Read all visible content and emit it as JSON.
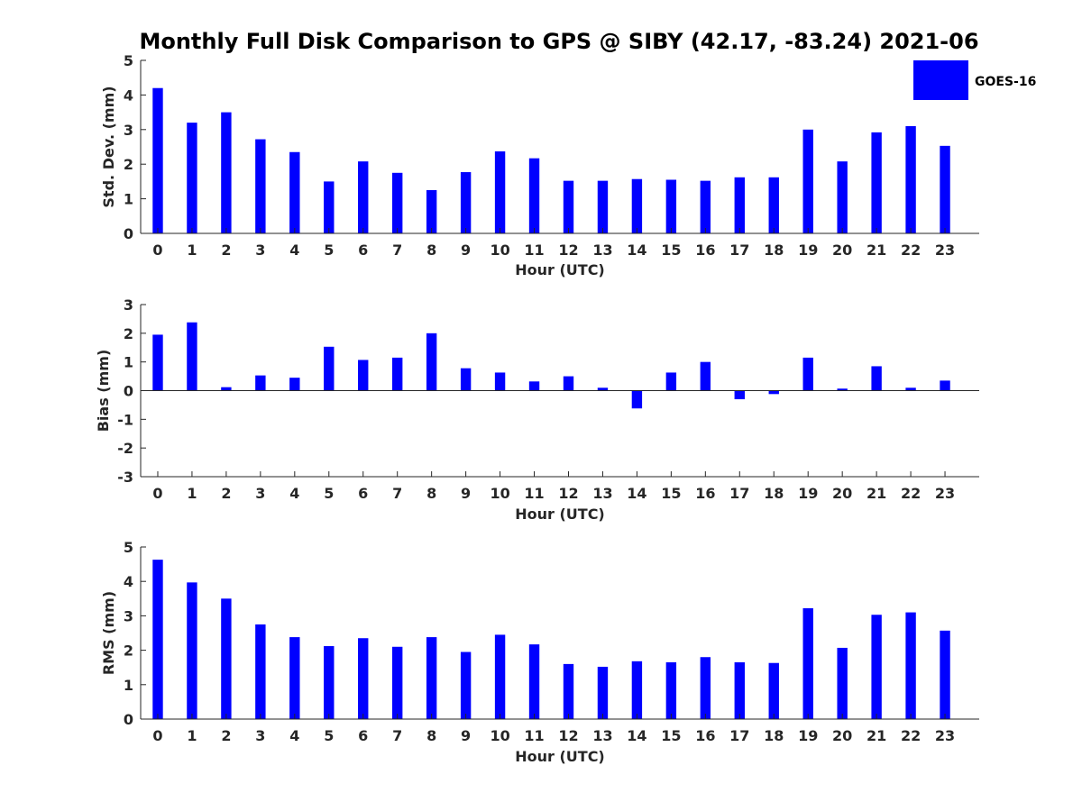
{
  "title": "Monthly Full Disk Comparison to GPS @ SIBY (42.17, -83.24) 2021-06",
  "legend": {
    "entries": [
      "GOES-16"
    ],
    "placement": "top-right",
    "color": "#0000ff"
  },
  "colors": {
    "bar": "#0000ff",
    "axis": "#262626",
    "title": "#000000"
  },
  "chart_data": [
    {
      "type": "bar",
      "xlabel": "Hour (UTC)",
      "ylabel": "Std. Dev. (mm)",
      "ylim": [
        0,
        5
      ],
      "yticks": [
        "0",
        "1",
        "2",
        "3",
        "4",
        "5"
      ],
      "categories": [
        "0",
        "1",
        "2",
        "3",
        "4",
        "5",
        "6",
        "7",
        "8",
        "9",
        "10",
        "11",
        "12",
        "13",
        "14",
        "15",
        "16",
        "17",
        "18",
        "19",
        "20",
        "21",
        "22",
        "23"
      ],
      "series": [
        {
          "name": "GOES-16",
          "values": [
            4.2,
            3.2,
            3.5,
            2.72,
            2.35,
            1.5,
            2.08,
            1.75,
            1.25,
            1.77,
            2.37,
            2.17,
            1.52,
            1.52,
            1.57,
            1.55,
            1.52,
            1.62,
            1.62,
            3.0,
            2.08,
            2.92,
            3.1,
            2.53
          ]
        }
      ],
      "grid": false
    },
    {
      "type": "bar",
      "xlabel": "Hour (UTC)",
      "ylabel": "Bias (mm)",
      "ylim": [
        -3,
        3
      ],
      "yticks": [
        "-3",
        "-2",
        "-1",
        "0",
        "1",
        "2",
        "3"
      ],
      "categories": [
        "0",
        "1",
        "2",
        "3",
        "4",
        "5",
        "6",
        "7",
        "8",
        "9",
        "10",
        "11",
        "12",
        "13",
        "14",
        "15",
        "16",
        "17",
        "18",
        "19",
        "20",
        "21",
        "22",
        "23"
      ],
      "series": [
        {
          "name": "GOES-16",
          "values": [
            1.95,
            2.38,
            0.12,
            0.53,
            0.45,
            1.53,
            1.07,
            1.15,
            2.0,
            0.78,
            0.63,
            0.32,
            0.5,
            0.1,
            -0.62,
            0.63,
            1.0,
            -0.3,
            -0.12,
            1.15,
            0.07,
            0.85,
            0.1,
            0.35
          ]
        }
      ],
      "grid": false
    },
    {
      "type": "bar",
      "xlabel": "Hour (UTC)",
      "ylabel": "RMS (mm)",
      "ylim": [
        0,
        5
      ],
      "yticks": [
        "0",
        "1",
        "2",
        "3",
        "4",
        "5"
      ],
      "categories": [
        "0",
        "1",
        "2",
        "3",
        "4",
        "5",
        "6",
        "7",
        "8",
        "9",
        "10",
        "11",
        "12",
        "13",
        "14",
        "15",
        "16",
        "17",
        "18",
        "19",
        "20",
        "21",
        "22",
        "23"
      ],
      "series": [
        {
          "name": "GOES-16",
          "values": [
            4.63,
            3.97,
            3.5,
            2.75,
            2.38,
            2.12,
            2.35,
            2.1,
            2.38,
            1.95,
            2.45,
            2.17,
            1.6,
            1.52,
            1.68,
            1.65,
            1.8,
            1.65,
            1.63,
            3.22,
            2.07,
            3.03,
            3.1,
            2.57
          ]
        }
      ],
      "grid": false
    }
  ]
}
